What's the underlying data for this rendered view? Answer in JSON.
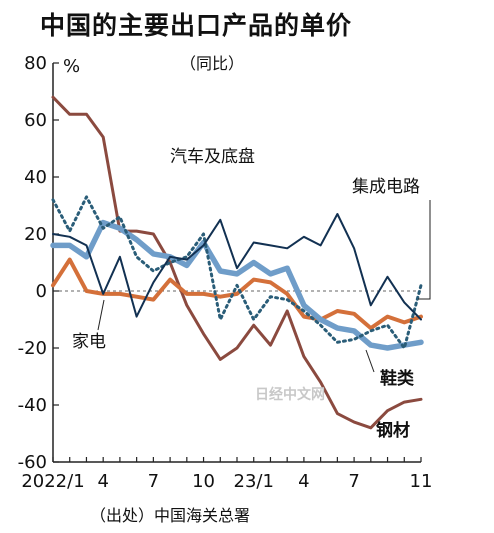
{
  "chart_data": {
    "type": "line",
    "title": "中国的主要出口产品的单价",
    "subtitle": "（同比）",
    "unit_label": "%",
    "source": "（出处）中国海关总署",
    "watermark": "日经中文网",
    "x": [
      "2022/1",
      "2",
      "3",
      "4",
      "5",
      "6",
      "7",
      "8",
      "9",
      "10",
      "11",
      "12",
      "23/1",
      "2",
      "3",
      "4",
      "5",
      "6",
      "7",
      "8",
      "9",
      "10",
      "11"
    ],
    "x_tick_labels": [
      {
        "index": 0,
        "label": "2022/1"
      },
      {
        "index": 3,
        "label": "4"
      },
      {
        "index": 6,
        "label": "7"
      },
      {
        "index": 9,
        "label": "10"
      },
      {
        "index": 12,
        "label": "23/1"
      },
      {
        "index": 15,
        "label": "4"
      },
      {
        "index": 18,
        "label": "7"
      },
      {
        "index": 22,
        "label": "11"
      }
    ],
    "ylim": [
      -60,
      80
    ],
    "y_ticks": [
      80,
      60,
      40,
      20,
      0,
      -20,
      -40,
      -60
    ],
    "series": [
      {
        "name": "钢材",
        "color": "#8b4a3f",
        "style": "solid",
        "values": [
          68,
          62,
          62,
          54,
          21,
          21,
          20,
          10,
          -5,
          -15,
          -24,
          -20,
          -12,
          -19,
          -7,
          -23,
          -32,
          -43,
          -46,
          -48,
          -42,
          -39,
          -38
        ]
      },
      {
        "name": "汽车及底盘",
        "color": "#123152",
        "style": "solid",
        "values": [
          20,
          19,
          16,
          -1,
          12,
          -9,
          3,
          12,
          11,
          16,
          25,
          8,
          17,
          16,
          15,
          19,
          16,
          27,
          15,
          -5,
          5,
          -4,
          -10
        ]
      },
      {
        "name": "集成电路",
        "color": "#2a5d78",
        "style": "dotted",
        "values": [
          32,
          21,
          33,
          22,
          26,
          12,
          7,
          10,
          12,
          20,
          -10,
          2,
          -10,
          -2,
          -3,
          -7,
          -12,
          -18,
          -17,
          -14,
          -12,
          -20,
          2
        ]
      },
      {
        "name": "鞋类",
        "color": "#6f9dc9",
        "style": "thick",
        "values": [
          16,
          16,
          12,
          24,
          22,
          18,
          13,
          12,
          9,
          17,
          7,
          6,
          10,
          6,
          8,
          -5,
          -10,
          -13,
          -14,
          -19,
          -20,
          -19,
          -18
        ]
      },
      {
        "name": "家电",
        "color": "#d4703a",
        "style": "solid",
        "values": [
          2,
          11,
          0,
          -1,
          -1,
          -2,
          -3,
          4,
          -1,
          -1,
          -2,
          -1,
          4,
          3,
          -1,
          -9,
          -10,
          -7,
          -8,
          -13,
          -9,
          -11,
          -9
        ]
      }
    ]
  }
}
